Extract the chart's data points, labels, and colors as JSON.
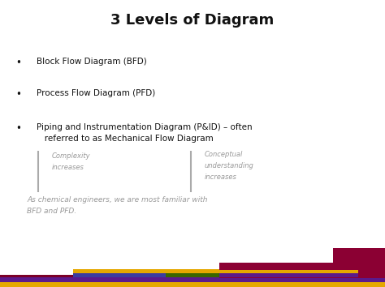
{
  "title": "3 Levels of Diagram",
  "title_fontsize": 13,
  "title_fontweight": "bold",
  "bg_color": "#ffffff",
  "bullet_items": [
    "Block Flow Diagram (BFD)",
    "Process Flow Diagram (PFD)",
    "Piping and Instrumentation Diagram (P&ID) – often\n   referred to as Mechanical Flow Diagram"
  ],
  "bullet_fontsize": 7.5,
  "sub_text_left_line1": "Complexity",
  "sub_text_left_line2": "increases",
  "sub_text_right_line1": "Conceptual",
  "sub_text_right_line2": "understanding",
  "sub_text_right_line3": "increases",
  "note_line1": "As chemical engineers, we are most familiar with",
  "note_line2": "BFD and PFD.",
  "note_fontsize": 6.5,
  "sub_fontsize": 6.0,
  "text_color": "#111111",
  "gray_color": "#999999",
  "line_color": "#aaaaaa"
}
